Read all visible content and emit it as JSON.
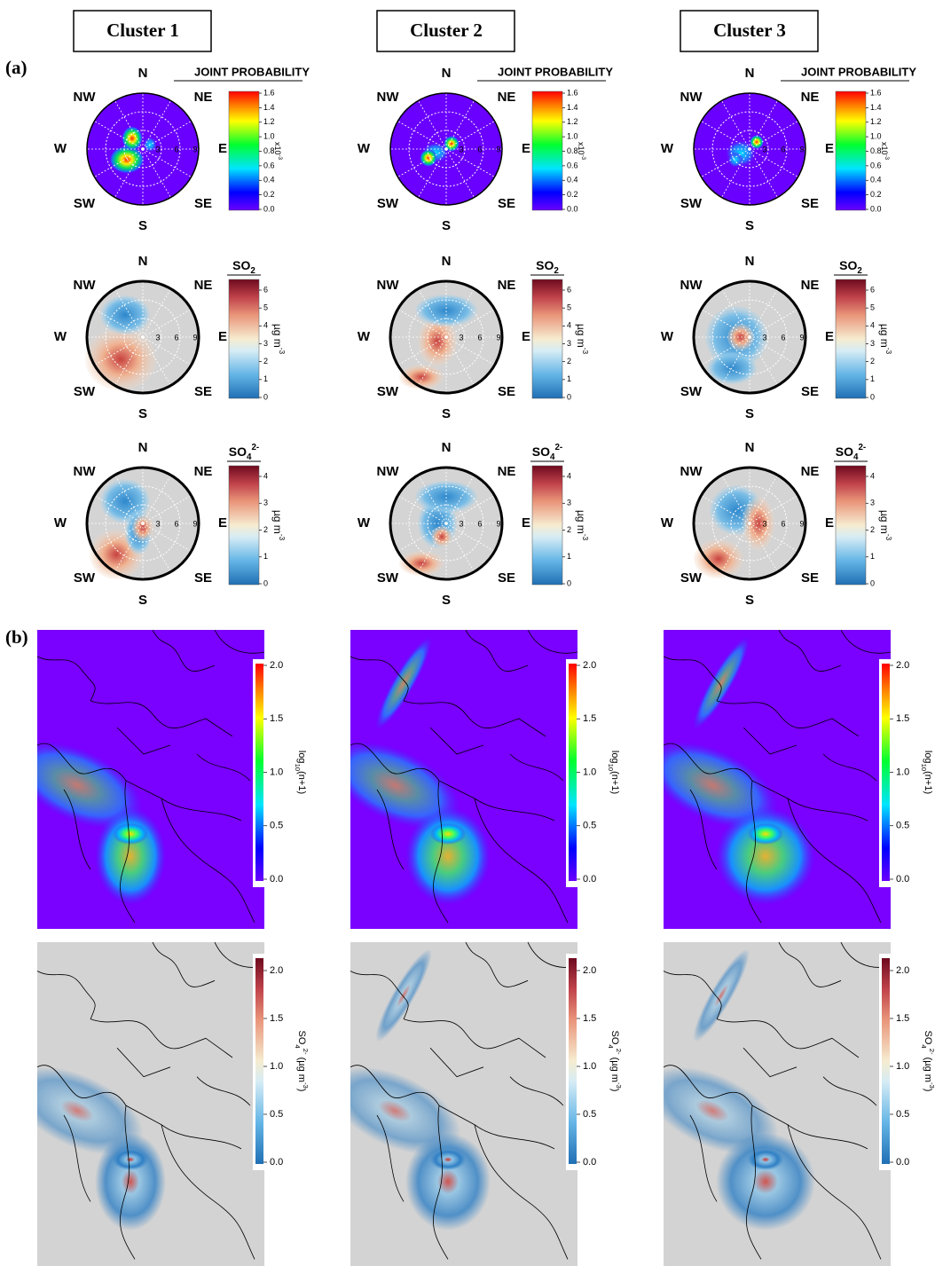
{
  "panel_labels": {
    "a": "(a)",
    "b": "(b)"
  },
  "clusters": [
    "Cluster 1",
    "Cluster 2",
    "Cluster 3"
  ],
  "directions": {
    "n": "N",
    "ne": "NE",
    "e": "E",
    "se": "SE",
    "s": "S",
    "sw": "SW",
    "w": "W",
    "nw": "NW"
  },
  "radial_ticks": [
    "3",
    "6",
    "9"
  ],
  "joint_probability": {
    "title": "JOINT PROBABILITY",
    "ticks": [
      "0.0",
      "0.2",
      "0.4",
      "0.6",
      "0.8",
      "1.0",
      "1.2",
      "1.4",
      "1.6"
    ],
    "unit": {
      "base": "x10",
      "exp": "-3"
    }
  },
  "so2": {
    "title": {
      "base": "SO",
      "sub": "2"
    },
    "ticks": [
      "0",
      "1",
      "2",
      "3",
      "4",
      "5",
      "6"
    ],
    "unit": {
      "base": "µg m",
      "exp": "-3"
    }
  },
  "so4": {
    "title": {
      "base": "SO",
      "sub": "4",
      "sup": "2-"
    },
    "ticks": [
      "0",
      "1",
      "2",
      "3",
      "4"
    ],
    "unit": {
      "base": "µg m",
      "exp": "-3"
    }
  },
  "trajectory_density": {
    "ticks": [
      "0.0",
      "0.5",
      "1.0",
      "1.5",
      "2.0"
    ],
    "label": {
      "base": "log",
      "sub": "10",
      "rest": "(n+1)"
    }
  },
  "so4_concentration": {
    "ticks": [
      "0.0",
      "0.5",
      "1.0",
      "1.5",
      "2.0"
    ],
    "label": {
      "base": "SO",
      "sub": "4",
      "sup": "2-",
      "rest": " (µg m",
      "exp": "-3",
      "end": ")"
    }
  }
}
